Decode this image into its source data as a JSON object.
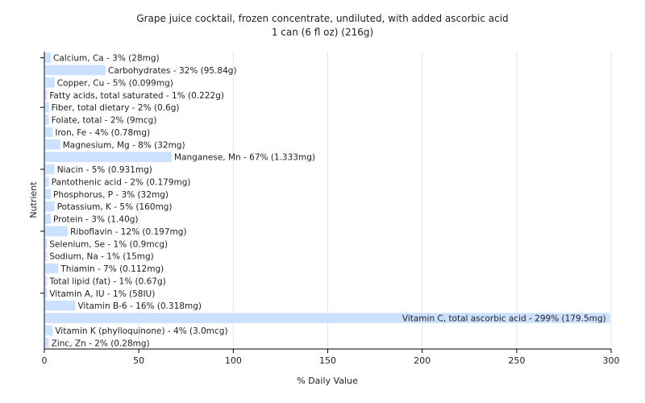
{
  "chart_data": {
    "type": "bar",
    "orientation": "horizontal",
    "title": "Grape juice cocktail, frozen concentrate, undiluted, with added ascorbic acid",
    "subtitle": "1 can (6 fl oz) (216g)",
    "xlabel": "% Daily Value",
    "ylabel": "Nutrient",
    "xlim": [
      0,
      300
    ],
    "xticks": [
      0,
      50,
      100,
      150,
      200,
      250,
      300
    ],
    "grid": true,
    "colors": {
      "bar": "#cce0ff",
      "grid": "#e6e6e6",
      "axis": "#000000"
    },
    "bars": [
      {
        "label": "Calcium, Ca - 3% (28mg)",
        "value": 3
      },
      {
        "label": "Carbohydrates - 32% (95.84g)",
        "value": 32
      },
      {
        "label": "Copper, Cu - 5% (0.099mg)",
        "value": 5
      },
      {
        "label": "Fatty acids, total saturated - 1% (0.222g)",
        "value": 1
      },
      {
        "label": "Fiber, total dietary - 2% (0.6g)",
        "value": 2
      },
      {
        "label": "Folate, total - 2% (9mcg)",
        "value": 2
      },
      {
        "label": "Iron, Fe - 4% (0.78mg)",
        "value": 4
      },
      {
        "label": "Magnesium, Mg - 8% (32mg)",
        "value": 8
      },
      {
        "label": "Manganese, Mn - 67% (1.333mg)",
        "value": 67
      },
      {
        "label": "Niacin - 5% (0.931mg)",
        "value": 5
      },
      {
        "label": "Pantothenic acid - 2% (0.179mg)",
        "value": 2
      },
      {
        "label": "Phosphorus, P - 3% (32mg)",
        "value": 3
      },
      {
        "label": "Potassium, K - 5% (160mg)",
        "value": 5
      },
      {
        "label": "Protein - 3% (1.40g)",
        "value": 3
      },
      {
        "label": "Riboflavin - 12% (0.197mg)",
        "value": 12
      },
      {
        "label": "Selenium, Se - 1% (0.9mcg)",
        "value": 1
      },
      {
        "label": "Sodium, Na - 1% (15mg)",
        "value": 1
      },
      {
        "label": "Thiamin - 7% (0.112mg)",
        "value": 7
      },
      {
        "label": "Total lipid (fat) - 1% (0.67g)",
        "value": 1
      },
      {
        "label": "Vitamin A, IU - 1% (58IU)",
        "value": 1
      },
      {
        "label": "Vitamin B-6 - 16% (0.318mg)",
        "value": 16
      },
      {
        "label": "Vitamin C, total ascorbic acid - 299% (179.5mg)",
        "value": 299
      },
      {
        "label": "Vitamin K (phylloquinone) - 4% (3.0mcg)",
        "value": 4
      },
      {
        "label": "Zinc, Zn - 2% (0.28mg)",
        "value": 2
      }
    ]
  }
}
